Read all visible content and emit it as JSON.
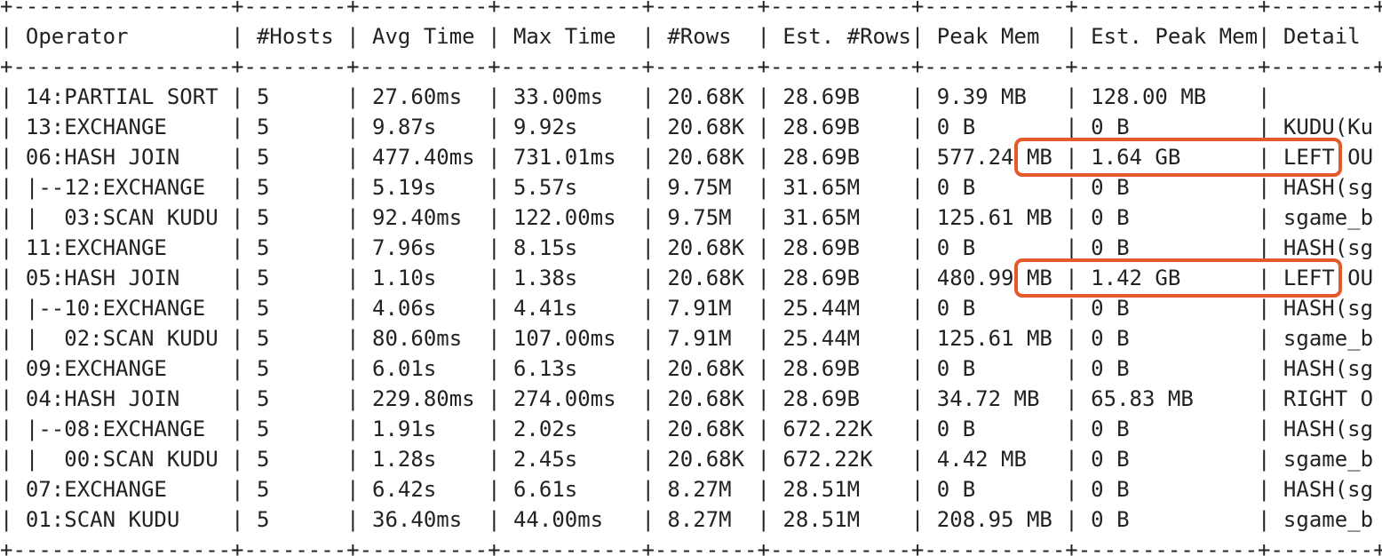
{
  "table": {
    "columns": [
      "Operator",
      "#Hosts",
      "Avg Time",
      "Max Time",
      "#Rows",
      "Est. #Rows",
      "Peak Mem",
      "Est. Peak Mem",
      "Detail"
    ],
    "rows": [
      [
        "14:PARTIAL SORT",
        "5",
        "27.60ms",
        "33.00ms",
        "20.68K",
        "28.69B",
        "9.39 MB",
        "128.00 MB",
        ""
      ],
      [
        "13:EXCHANGE",
        "5",
        "9.87s",
        "9.92s",
        "20.68K",
        "28.69B",
        "0 B",
        "0 B",
        "KUDU(Ku"
      ],
      [
        "06:HASH JOIN",
        "5",
        "477.40ms",
        "731.01ms",
        "20.68K",
        "28.69B",
        "577.24 MB",
        "1.64 GB",
        "LEFT OU"
      ],
      [
        "|--12:EXCHANGE",
        "5",
        "5.19s",
        "5.57s",
        "9.75M",
        "31.65M",
        "0 B",
        "0 B",
        "HASH(sg"
      ],
      [
        "|  03:SCAN KUDU",
        "5",
        "92.40ms",
        "122.00ms",
        "9.75M",
        "31.65M",
        "125.61 MB",
        "0 B",
        "sgame_b"
      ],
      [
        "11:EXCHANGE",
        "5",
        "7.96s",
        "8.15s",
        "20.68K",
        "28.69B",
        "0 B",
        "0 B",
        "HASH(sg"
      ],
      [
        "05:HASH JOIN",
        "5",
        "1.10s",
        "1.38s",
        "20.68K",
        "28.69B",
        "480.99 MB",
        "1.42 GB",
        "LEFT OU"
      ],
      [
        "|--10:EXCHANGE",
        "5",
        "4.06s",
        "4.41s",
        "7.91M",
        "25.44M",
        "0 B",
        "0 B",
        "HASH(sg"
      ],
      [
        "|  02:SCAN KUDU",
        "5",
        "80.60ms",
        "107.00ms",
        "7.91M",
        "25.44M",
        "125.61 MB",
        "0 B",
        "sgame_b"
      ],
      [
        "09:EXCHANGE",
        "5",
        "6.01s",
        "6.13s",
        "20.68K",
        "28.69B",
        "0 B",
        "0 B",
        "HASH(sg"
      ],
      [
        "04:HASH JOIN",
        "5",
        "229.80ms",
        "274.00ms",
        "20.68K",
        "28.69B",
        "34.72 MB",
        "65.83 MB",
        "RIGHT O"
      ],
      [
        "|--08:EXCHANGE",
        "5",
        "1.91s",
        "2.02s",
        "20.68K",
        "672.22K",
        "0 B",
        "0 B",
        "HASH(sg"
      ],
      [
        "|  00:SCAN KUDU",
        "5",
        "1.28s",
        "2.45s",
        "20.68K",
        "672.22K",
        "4.42 MB",
        "0 B",
        "sgame_b"
      ],
      [
        "07:EXCHANGE",
        "5",
        "6.42s",
        "6.61s",
        "8.27M",
        "28.51M",
        "0 B",
        "0 B",
        "HASH(sg"
      ],
      [
        "01:SCAN KUDU",
        "5",
        "36.40ms",
        "44.00ms",
        "8.27M",
        "28.51M",
        "208.95 MB",
        "0 B",
        "sgame_b"
      ]
    ],
    "highlighted_rows": [
      "06:HASH JOIN",
      "05:HASH JOIN"
    ]
  },
  "colors": {
    "text": "#222222",
    "background": "#ffffff",
    "highlight_border": "#e55a2b"
  }
}
